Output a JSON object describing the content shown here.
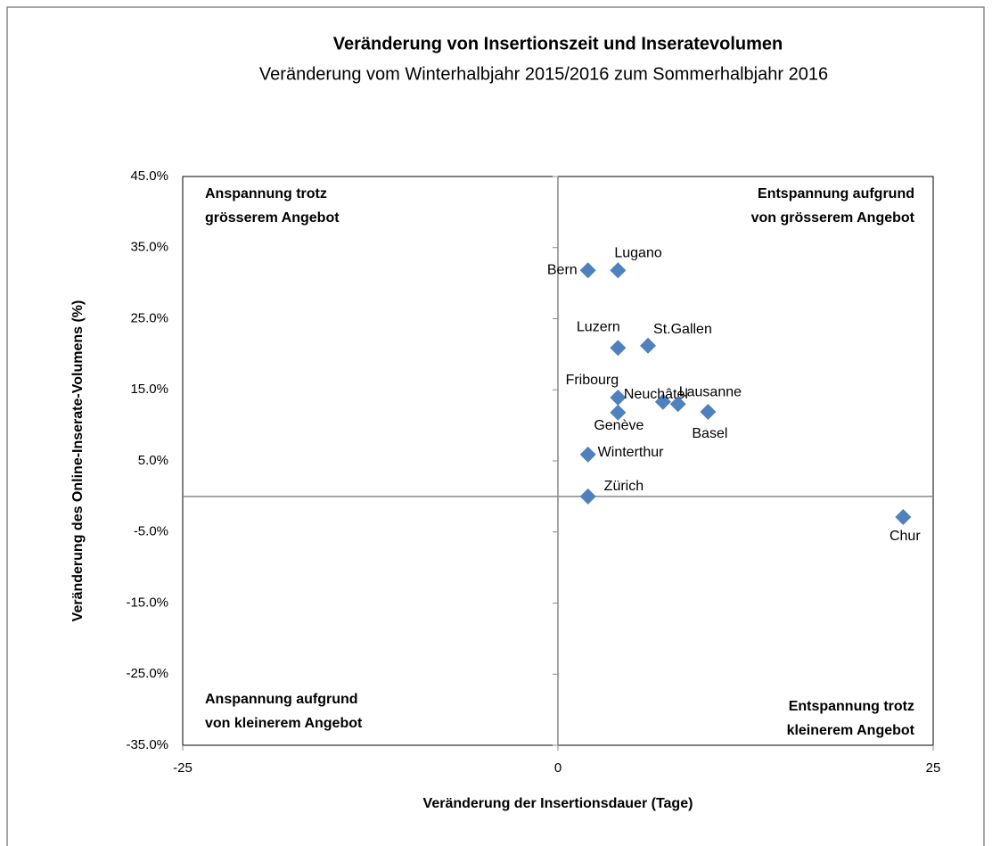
{
  "chart_data": {
    "type": "scatter",
    "title": "Veränderung von Insertionszeit und Inseratevolumen",
    "subtitle": "Veränderung vom Winterhalbjahr 2015/2016 zum Sommerhalbjahr 2016",
    "x_label": "Veränderung der Insertionsdauer (Tage)",
    "y_label": "Veränderung des Online-Inserate-Volumens (%)",
    "annotations": [
      [
        "Anspannung trotz",
        "grösserem Angebot"
      ],
      [
        "Entspannung aufgrund",
        "von grösserem Angebot"
      ],
      [
        "Anspannung aufgrund",
        "von kleinerem Angebot"
      ],
      [
        "Entspannung trotz",
        "kleinerem Angebot"
      ]
    ],
    "color": "#4f81bd",
    "labels": [
      "Bern",
      "Lugano",
      "Luzern",
      "St.Gallen",
      "Fribourg",
      "Genève",
      "Neuchâtel",
      "Lausanne",
      "Basel",
      "Winterthur",
      "Zürich",
      "Chur"
    ],
    "x": [
      2,
      4,
      4,
      6,
      4,
      4,
      7,
      8,
      10,
      2,
      2,
      23
    ],
    "values": [
      31.8,
      31.8,
      20.9,
      21.2,
      13.9,
      11.8,
      13.3,
      13.0,
      11.9,
      5.9,
      0,
      -2.9
    ],
    "xlim": [
      -25,
      25
    ],
    "xticks": [
      -25,
      0,
      25
    ],
    "ylim": [
      -35,
      45
    ],
    "yticks": [
      {
        "value": 45,
        "label": "45.0%"
      },
      {
        "value": 35,
        "label": "35.0%"
      },
      {
        "value": 25,
        "label": "25.0%"
      },
      {
        "value": 15,
        "label": "15.0%"
      },
      {
        "value": 5,
        "label": "5.0%"
      },
      {
        "value": -5,
        "label": "-5.0%"
      },
      {
        "value": -15,
        "label": "-15.0%"
      },
      {
        "value": -25,
        "label": "-25.0%"
      },
      {
        "value": -35,
        "label": "-35.0%"
      }
    ]
  }
}
